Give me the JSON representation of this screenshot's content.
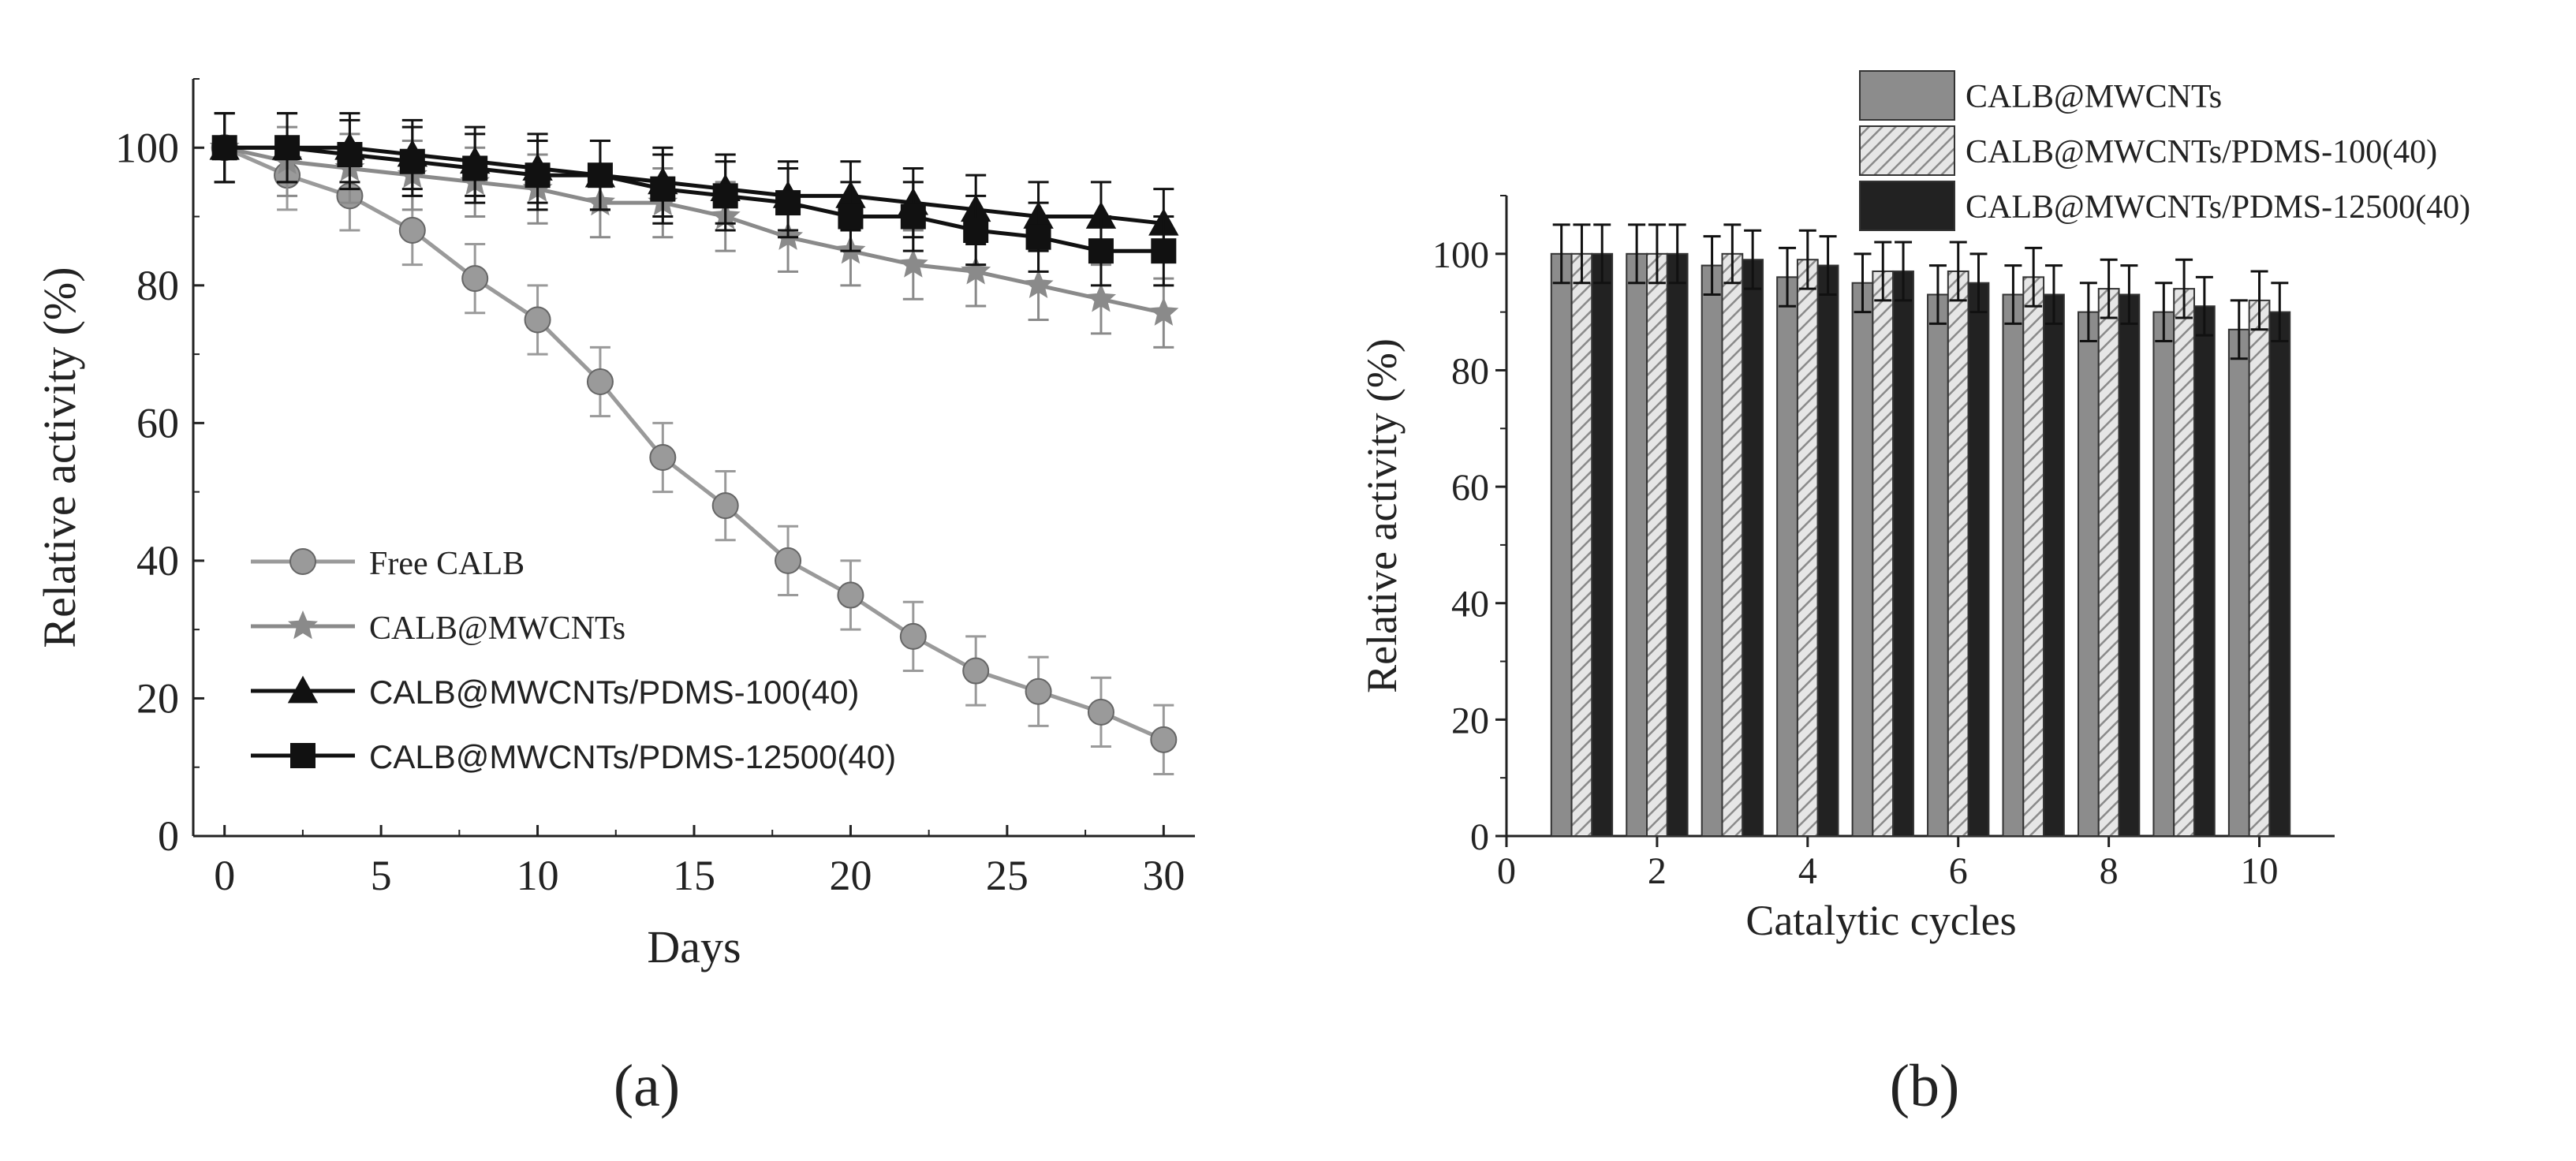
{
  "chart_data": [
    {
      "type": "line",
      "panel_label": "(a)",
      "xlabel": "Days",
      "ylabel": "Relative activity (%)",
      "xlim": [
        -1,
        31
      ],
      "ylim": [
        0,
        110
      ],
      "x_ticks": [
        0,
        5,
        10,
        15,
        20,
        25,
        30
      ],
      "y_ticks": [
        0,
        20,
        40,
        60,
        80,
        100
      ],
      "legend_position": "bottom-left",
      "series": [
        {
          "name": "Free CALB",
          "marker": "circle",
          "color": "#9a9a9a",
          "x": [
            0,
            2,
            4,
            6,
            8,
            10,
            12,
            14,
            16,
            18,
            20,
            22,
            24,
            26,
            28,
            30
          ],
          "values": [
            100,
            96,
            93,
            88,
            81,
            75,
            66,
            55,
            48,
            40,
            35,
            29,
            24,
            21,
            18,
            14
          ],
          "errors": [
            5,
            5,
            5,
            5,
            5,
            5,
            5,
            5,
            5,
            5,
            5,
            5,
            5,
            5,
            5,
            5
          ]
        },
        {
          "name": "CALB@MWCNTs",
          "marker": "star",
          "color": "#8a8a8a",
          "x": [
            0,
            2,
            4,
            6,
            8,
            10,
            12,
            14,
            16,
            18,
            20,
            22,
            24,
            26,
            28,
            30
          ],
          "values": [
            100,
            98,
            97,
            96,
            95,
            94,
            92,
            92,
            90,
            87,
            85,
            83,
            82,
            80,
            78,
            76
          ],
          "errors": [
            5,
            5,
            5,
            5,
            5,
            5,
            5,
            5,
            5,
            5,
            5,
            5,
            5,
            5,
            5,
            5
          ]
        },
        {
          "name": "CALB@MWCNTs/PDMS-100(40)",
          "marker": "triangle",
          "color": "#111111",
          "x": [
            0,
            2,
            4,
            6,
            8,
            10,
            12,
            14,
            16,
            18,
            20,
            22,
            24,
            26,
            28,
            30
          ],
          "values": [
            100,
            100,
            100,
            99,
            98,
            97,
            96,
            95,
            94,
            93,
            93,
            92,
            91,
            90,
            90,
            89
          ],
          "errors": [
            5,
            5,
            5,
            5,
            5,
            5,
            5,
            5,
            5,
            5,
            5,
            5,
            5,
            5,
            5,
            5
          ]
        },
        {
          "name": "CALB@MWCNTs/PDMS-12500(40)",
          "marker": "square",
          "color": "#111111",
          "x": [
            0,
            2,
            4,
            6,
            8,
            10,
            12,
            14,
            16,
            18,
            20,
            22,
            24,
            26,
            28,
            30
          ],
          "values": [
            100,
            100,
            99,
            98,
            97,
            96,
            96,
            94,
            93,
            92,
            90,
            90,
            88,
            87,
            85,
            85
          ],
          "errors": [
            5,
            5,
            5,
            5,
            5,
            5,
            5,
            5,
            5,
            5,
            5,
            5,
            5,
            5,
            5,
            5
          ]
        }
      ]
    },
    {
      "type": "bar",
      "panel_label": "(b)",
      "xlabel": "Catalytic cycles",
      "ylabel": "Relative activity (%)",
      "xlim": [
        0,
        11
      ],
      "ylim": [
        0,
        110
      ],
      "x_ticks": [
        0,
        2,
        4,
        6,
        8,
        10
      ],
      "y_ticks": [
        0,
        20,
        40,
        60,
        80,
        100
      ],
      "legend_position": "top-right",
      "categories": [
        1,
        2,
        3,
        4,
        5,
        6,
        7,
        8,
        9,
        10
      ],
      "series": [
        {
          "name": "CALB@MWCNTs",
          "fill": "solid-gray",
          "color": "#8c8c8c",
          "values": [
            100,
            100,
            98,
            96,
            95,
            93,
            93,
            90,
            90,
            87
          ],
          "errors": [
            5,
            5,
            5,
            5,
            5,
            5,
            5,
            5,
            5,
            5
          ]
        },
        {
          "name": "CALB@MWCNTs/PDMS-100(40)",
          "fill": "hatched",
          "color": "#bdbdbd",
          "values": [
            100,
            100,
            100,
            99,
            97,
            97,
            96,
            94,
            94,
            92
          ],
          "errors": [
            5,
            5,
            5,
            5,
            5,
            5,
            5,
            5,
            5,
            5
          ]
        },
        {
          "name": "CALB@MWCNTs/PDMS-12500(40)",
          "fill": "solid-black",
          "color": "#222222",
          "values": [
            100,
            100,
            99,
            98,
            97,
            95,
            93,
            93,
            91,
            90
          ],
          "errors": [
            5,
            5,
            5,
            5,
            5,
            5,
            5,
            5,
            5,
            5
          ]
        }
      ]
    }
  ]
}
